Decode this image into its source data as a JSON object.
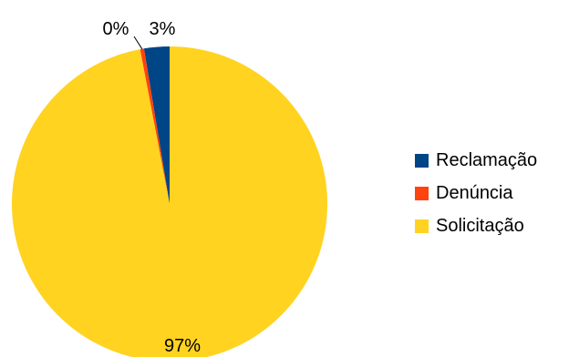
{
  "chart_data": {
    "type": "pie",
    "categories": [
      "Reclamação",
      "Denúncia",
      "Solicitação"
    ],
    "values": [
      2.6,
      0.4,
      97.0
    ],
    "data_labels": [
      "3%",
      "0%",
      "97%"
    ],
    "colors": [
      "#004586",
      "#ff420e",
      "#ffd320"
    ],
    "title": "",
    "legend_position": "right"
  }
}
